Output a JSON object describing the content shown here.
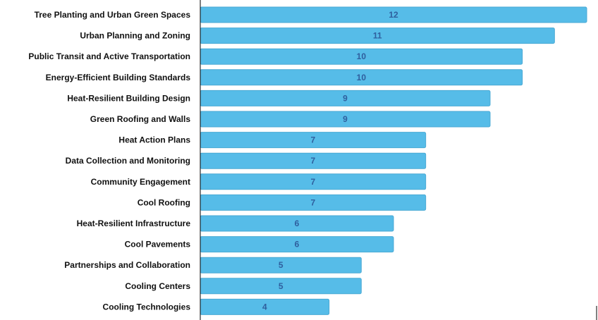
{
  "chart_data": {
    "type": "bar",
    "orientation": "horizontal",
    "categories": [
      "Tree Planting and Urban Green Spaces",
      "Urban Planning and Zoning",
      "Public Transit and Active Transportation",
      "Energy-Efficient Building Standards",
      "Heat-Resilient Building Design",
      "Green Roofing and Walls",
      "Heat Action Plans",
      "Data Collection and Monitoring",
      "Community Engagement",
      "Cool Roofing",
      "Heat-Resilient Infrastructure",
      "Cool Pavements",
      "Partnerships and Collaboration",
      "Cooling Centers",
      "Cooling Technologies"
    ],
    "values": [
      12,
      11,
      10,
      10,
      9,
      9,
      7,
      7,
      7,
      7,
      6,
      6,
      5,
      5,
      4
    ],
    "xlim": [
      0,
      12
    ],
    "grid": false,
    "legend": "none",
    "colors": {
      "bar_fill": "#56bce8",
      "bar_stroke": "#4aa9d4",
      "value_text": "#2f5f9e",
      "axis": "#000000",
      "category_text": "#111111"
    }
  }
}
